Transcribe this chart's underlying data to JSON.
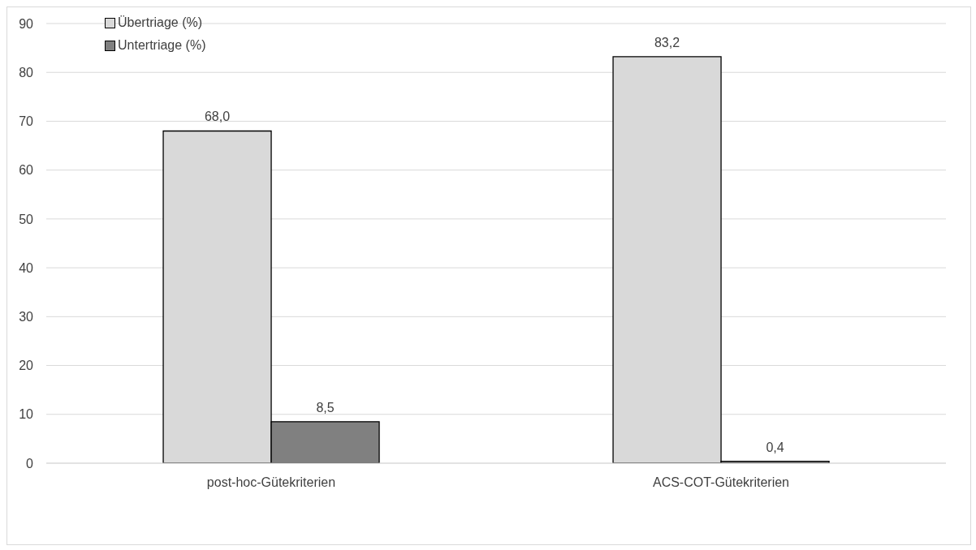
{
  "chart_data": {
    "type": "bar",
    "categories": [
      "post-hoc-Gütekriterien",
      "ACS-COT-Gütekriterien"
    ],
    "series": [
      {
        "name": "Übertriage (%)",
        "color": "#d9d9d9",
        "values": [
          68.0,
          83.2
        ],
        "value_labels": [
          "68,0",
          "83,2"
        ]
      },
      {
        "name": "Untertriage (%)",
        "color": "#808080",
        "values": [
          8.5,
          0.4
        ],
        "value_labels": [
          "8,5",
          "0,4"
        ]
      }
    ],
    "ylim": [
      0,
      90
    ],
    "yticks": [
      0,
      10,
      20,
      30,
      40,
      50,
      60,
      70,
      80,
      90
    ],
    "grid": "y",
    "legend": "top left"
  }
}
